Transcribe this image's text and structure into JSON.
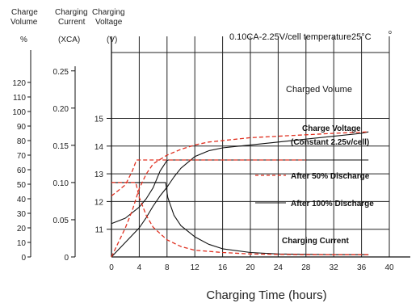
{
  "chart_data": {
    "type": "line",
    "title": "0.10CA-2.25V/cell  temperature25°C",
    "title_sup": "o",
    "xlabel": "Charging Time (hours)",
    "xlim": [
      0,
      42
    ],
    "x_ticks": [
      "0",
      "4",
      "8",
      "12",
      "16",
      "20",
      "24",
      "28",
      "32",
      "36",
      "40"
    ],
    "grid": true,
    "axes": {
      "volume": {
        "header_line1": "Charge",
        "header_line2": "Volume",
        "unit": "%",
        "ylim": [
          0,
          120
        ],
        "ticks": [
          "0",
          "10",
          "20",
          "30",
          "40",
          "50",
          "60",
          "70",
          "80",
          "90",
          "100",
          "110",
          "120"
        ]
      },
      "current": {
        "header_line1": "Charging",
        "header_line2": "Current",
        "unit": "(XCA)",
        "ylim": [
          0,
          0.25
        ],
        "ticks": [
          "0",
          "0.05",
          "0.10",
          "0.15",
          "0.20",
          "0.25"
        ]
      },
      "voltage": {
        "header_line1": "Charging",
        "header_line2": "Voltage",
        "unit": "(V)",
        "ylim": [
          10,
          16
        ],
        "ticks": [
          "11",
          "12",
          "13",
          "14",
          "15"
        ]
      }
    },
    "annotations": {
      "charged_volume": "Charged Volume",
      "charge_voltage_line1": "Charge Voltage",
      "charge_voltage_line2": "(Constant 2.25v/cell)",
      "charging_current": "Charging Current"
    },
    "legend": {
      "placement": "right-middle",
      "after50": "After 50% Discharge",
      "after100": "After 100% Discharge"
    },
    "colors": {
      "after50": "#e03020",
      "after100": "#111111",
      "grid": "#222222"
    },
    "series": [
      {
        "name": "After 100% Discharge",
        "style": "solid",
        "curves": [
          {
            "quantity": "charged_volume",
            "axis": "volume",
            "x": [
              0,
              1,
              2,
              3,
              4,
              5,
              6,
              7,
              8,
              9,
              10,
              12,
              14,
              16,
              18,
              20,
              24,
              28,
              32,
              36,
              37
            ],
            "y": [
              0,
              5,
              10,
              15,
              20,
              27,
              35,
              42,
              48,
              55,
              61,
              69,
              73,
              75,
              76,
              77,
              79,
              81,
              83,
              85,
              86
            ]
          },
          {
            "quantity": "charging_voltage",
            "axis": "voltage",
            "x": [
              0,
              2,
              4,
              5,
              6,
              7,
              8,
              8.2,
              12,
              20,
              28,
              37
            ],
            "y": [
              11.2,
              11.4,
              11.8,
              12.1,
              12.5,
              13.1,
              13.48,
              13.5,
              13.5,
              13.5,
              13.5,
              13.5
            ]
          },
          {
            "quantity": "charging_current",
            "axis": "current",
            "x": [
              0,
              2,
              4,
              6,
              7.8,
              8.1,
              9,
              10,
              12,
              14,
              16,
              20,
              24,
              28,
              32,
              37
            ],
            "y": [
              0.1,
              0.1,
              0.1,
              0.1,
              0.1,
              0.08,
              0.056,
              0.042,
              0.027,
              0.017,
              0.011,
              0.006,
              0.004,
              0.0035,
              0.003,
              0.003
            ]
          }
        ]
      },
      {
        "name": "After 50% Discharge",
        "style": "dashed",
        "curves": [
          {
            "quantity": "charged_volume",
            "axis": "volume",
            "x": [
              0,
              1,
              2,
              3,
              4,
              5,
              6,
              8,
              10,
              12,
              14,
              16,
              20,
              24,
              28,
              32,
              37
            ],
            "y": [
              0,
              10,
              20,
              32,
              47,
              57,
              64,
              70,
              74,
              77,
              79,
              80,
              82,
              83,
              84,
              85,
              86
            ]
          },
          {
            "quantity": "charging_voltage",
            "axis": "voltage",
            "x": [
              0,
              1,
              2,
              3,
              3.6,
              4,
              8,
              12,
              16,
              20,
              24,
              28
            ],
            "y": [
              12.2,
              12.4,
              12.6,
              13.1,
              13.5,
              13.5,
              13.5,
              13.5,
              13.5,
              13.5,
              13.5,
              13.5
            ]
          },
          {
            "quantity": "charging_current",
            "axis": "current",
            "x": [
              0,
              1,
              2,
              3,
              3.5,
              4,
              5,
              6,
              8,
              10,
              12,
              16,
              20,
              24,
              28,
              32,
              37
            ],
            "y": [
              0.1,
              0.1,
              0.1,
              0.1,
              0.1,
              0.08,
              0.056,
              0.04,
              0.023,
              0.014,
              0.009,
              0.006,
              0.004,
              0.0035,
              0.003,
              0.003,
              0.003
            ]
          }
        ]
      }
    ]
  }
}
